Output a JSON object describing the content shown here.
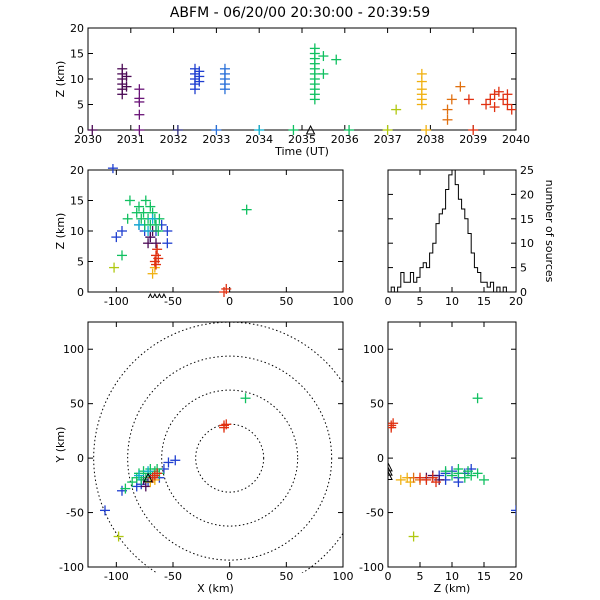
{
  "title": "ABFM - 06/20/00 20:30:00 - 20:39:59",
  "chart_data": [
    {
      "id": "time_height",
      "type": "scatter",
      "xlabel": "Time (UT)",
      "ylabel": "Z (km)",
      "xlim": [
        2030,
        2040
      ],
      "ylim": [
        0,
        20
      ],
      "xticks": [
        "2030",
        "2031",
        "2032",
        "2033",
        "2034",
        "2035",
        "2036",
        "2037",
        "2038",
        "2039",
        "2040"
      ],
      "yticks": [
        "0",
        "5",
        "10",
        "15",
        "20"
      ],
      "series": [
        {
          "color": "#4b0a55",
          "points": [
            [
              2030.1,
              0
            ],
            [
              2030.8,
              7
            ],
            [
              2030.8,
              8
            ],
            [
              2030.8,
              9
            ],
            [
              2030.8,
              10
            ],
            [
              2030.8,
              11
            ],
            [
              2030.8,
              12
            ],
            [
              2030.9,
              8.5
            ],
            [
              2030.9,
              10.5
            ]
          ]
        },
        {
          "color": "#6a1478",
          "points": [
            [
              2031.2,
              0
            ],
            [
              2031.2,
              3
            ],
            [
              2031.2,
              5.5
            ],
            [
              2031.2,
              6.2
            ],
            [
              2031.2,
              8
            ]
          ]
        },
        {
          "color": "#2a2a7a",
          "points": [
            [
              2032.1,
              0
            ]
          ]
        },
        {
          "color": "#1f3fd0",
          "points": [
            [
              2032.5,
              8
            ],
            [
              2032.5,
              9
            ],
            [
              2032.5,
              10
            ],
            [
              2032.5,
              11
            ],
            [
              2032.5,
              12
            ],
            [
              2032.6,
              9.5
            ],
            [
              2032.6,
              10.5
            ],
            [
              2032.6,
              11.5
            ]
          ]
        },
        {
          "color": "#2a70d8",
          "points": [
            [
              2033.0,
              0
            ],
            [
              2033.2,
              8
            ],
            [
              2033.2,
              9
            ],
            [
              2033.2,
              10
            ],
            [
              2033.2,
              11
            ],
            [
              2033.2,
              12
            ]
          ]
        },
        {
          "color": "#10b0d0",
          "points": [
            [
              2034.0,
              0
            ]
          ]
        },
        {
          "color": "#10c060",
          "points": [
            [
              2034.8,
              0
            ],
            [
              2035.3,
              6
            ],
            [
              2035.3,
              7
            ],
            [
              2035.3,
              8
            ],
            [
              2035.3,
              9
            ],
            [
              2035.3,
              10
            ],
            [
              2035.3,
              11
            ],
            [
              2035.3,
              12
            ],
            [
              2035.3,
              13
            ],
            [
              2035.3,
              14
            ],
            [
              2035.3,
              15
            ],
            [
              2035.3,
              16
            ],
            [
              2035.5,
              14.5
            ],
            [
              2035.5,
              11
            ],
            [
              2035.8,
              13.8
            ],
            [
              2036.1,
              0
            ]
          ]
        },
        {
          "color": "#b0c810",
          "points": [
            [
              2037.0,
              0
            ],
            [
              2037.2,
              4
            ]
          ]
        },
        {
          "color": "#f0b010",
          "points": [
            [
              2037.8,
              5
            ],
            [
              2037.8,
              6
            ],
            [
              2037.8,
              7
            ],
            [
              2037.8,
              8
            ],
            [
              2037.8,
              9.5
            ],
            [
              2037.8,
              11
            ],
            [
              2037.9,
              0
            ]
          ]
        },
        {
          "color": "#e07010",
          "points": [
            [
              2038.4,
              2
            ],
            [
              2038.4,
              4
            ],
            [
              2038.5,
              6
            ],
            [
              2038.7,
              8.5
            ]
          ]
        },
        {
          "color": "#e03010",
          "points": [
            [
              2038.9,
              6
            ],
            [
              2039.0,
              0
            ],
            [
              2039.3,
              5
            ],
            [
              2039.4,
              6
            ],
            [
              2039.5,
              7
            ],
            [
              2039.5,
              4.5
            ],
            [
              2039.6,
              7.5
            ],
            [
              2039.7,
              6
            ],
            [
              2039.8,
              5
            ],
            [
              2039.8,
              7
            ],
            [
              2039.9,
              4
            ]
          ]
        }
      ],
      "triangles": [
        [
          2035.2,
          0
        ]
      ]
    },
    {
      "id": "x_z",
      "type": "scatter",
      "ylabel": "Z (km)",
      "xlim": [
        -125,
        100
      ],
      "ylim": [
        0,
        20
      ],
      "xticks": [
        "-100",
        "-50",
        "0",
        "50",
        "100"
      ],
      "yticks": [
        "0",
        "5",
        "10",
        "15",
        "20"
      ],
      "series": [
        {
          "color": "#1f3fd0",
          "points": [
            [
              -103,
              20.3
            ],
            [
              -100,
              9
            ],
            [
              -95,
              10
            ],
            [
              -80,
              11
            ],
            [
              -75,
              10
            ],
            [
              -70,
              9
            ],
            [
              -65,
              10
            ],
            [
              -60,
              11
            ],
            [
              -55,
              10
            ],
            [
              -55,
              8
            ]
          ]
        },
        {
          "color": "#4b0a55",
          "points": [
            [
              -72,
              8
            ],
            [
              -70,
              9
            ],
            [
              -68,
              10
            ],
            [
              -65,
              8
            ]
          ]
        },
        {
          "color": "#10c060",
          "points": [
            [
              -90,
              12
            ],
            [
              -88,
              15
            ],
            [
              -82,
              13
            ],
            [
              -80,
              14
            ],
            [
              -78,
              12
            ],
            [
              -76,
              13
            ],
            [
              -75,
              11
            ],
            [
              -74,
              15
            ],
            [
              -72,
              12
            ],
            [
              -70,
              11
            ],
            [
              -70,
              14
            ],
            [
              -68,
              13
            ],
            [
              -66,
              12
            ],
            [
              -65,
              11
            ],
            [
              -63,
              10
            ],
            [
              -62,
              12
            ],
            [
              -95,
              6
            ],
            [
              15,
              13.5
            ]
          ]
        },
        {
          "color": "#10b0d0",
          "points": [
            [
              -80,
              11
            ],
            [
              -72,
              10
            ],
            [
              -68,
              12
            ]
          ]
        },
        {
          "color": "#b0c810",
          "points": [
            [
              -102,
              4
            ]
          ]
        },
        {
          "color": "#f0b010",
          "points": [
            [
              -68,
              3
            ],
            [
              -66,
              4
            ]
          ]
        },
        {
          "color": "#e03010",
          "points": [
            [
              -66,
              5
            ],
            [
              -65,
              6
            ],
            [
              -64,
              7
            ],
            [
              -63,
              5.5
            ],
            [
              -65,
              4.5
            ],
            [
              -5,
              0
            ],
            [
              -3,
              0.5
            ]
          ]
        }
      ],
      "triangles": [
        [
          -70,
          -1
        ],
        [
          -66,
          -1
        ],
        [
          -62,
          -1
        ],
        [
          -58,
          -1
        ]
      ]
    },
    {
      "id": "z_hist",
      "type": "line",
      "xlabel": "",
      "ylabel": "number of sources",
      "xlim": [
        0,
        20
      ],
      "ylim": [
        0,
        25
      ],
      "xticks": [
        "0",
        "5",
        "10",
        "15",
        "20"
      ],
      "yticks": [
        "0",
        "5",
        "10",
        "15",
        "20",
        "25"
      ],
      "x": [
        0,
        0.5,
        1,
        1.5,
        2,
        2.5,
        3,
        3.5,
        4,
        4.5,
        5,
        5.5,
        6,
        6.5,
        7,
        7.5,
        8,
        8.5,
        9,
        9.5,
        10,
        10.5,
        11,
        11.5,
        12,
        12.5,
        13,
        13.5,
        14,
        14.5,
        15,
        15.5,
        16,
        16.5,
        17,
        17.5,
        18,
        18.5,
        19,
        19.5
      ],
      "values": [
        0,
        1,
        0,
        1,
        4,
        2,
        2,
        4,
        2,
        3,
        5,
        6,
        5,
        8,
        10,
        14,
        16,
        17,
        21,
        24,
        25,
        22,
        19,
        17,
        15,
        12,
        8,
        5,
        4,
        2,
        2,
        1,
        2,
        0,
        1,
        0,
        1,
        0,
        0,
        0
      ]
    },
    {
      "id": "x_y",
      "type": "scatter",
      "xlabel": "X (km)",
      "ylabel": "Y (km)",
      "xlim": [
        -125,
        100
      ],
      "ylim": [
        -100,
        125
      ],
      "xticks": [
        "-100",
        "-50",
        "0",
        "50",
        "100"
      ],
      "yticks": [
        "-100",
        "-50",
        "0",
        "50",
        "100"
      ],
      "range_rings_km": [
        30,
        60,
        90,
        120
      ],
      "series": [
        {
          "color": "#1f3fd0",
          "points": [
            [
              -110,
              -48
            ],
            [
              -95,
              -30
            ],
            [
              -82,
              -26
            ],
            [
              -78,
              -24
            ],
            [
              -72,
              -22
            ],
            [
              -62,
              -18
            ],
            [
              -58,
              -10
            ],
            [
              -54,
              -4
            ],
            [
              -48,
              -2
            ]
          ]
        },
        {
          "color": "#4b0a55",
          "points": [
            [
              -76,
              -20
            ],
            [
              -70,
              -18
            ],
            [
              -66,
              -16
            ],
            [
              -74,
              -26
            ]
          ]
        },
        {
          "color": "#10c060",
          "points": [
            [
              -92,
              -28
            ],
            [
              -86,
              -22
            ],
            [
              -82,
              -18
            ],
            [
              -80,
              -14
            ],
            [
              -78,
              -20
            ],
            [
              -76,
              -12
            ],
            [
              -74,
              -18
            ],
            [
              -72,
              -14
            ],
            [
              -70,
              -10
            ],
            [
              -68,
              -16
            ],
            [
              -66,
              -12
            ],
            [
              -64,
              -10
            ],
            [
              -62,
              -14
            ],
            [
              14,
              55
            ]
          ]
        },
        {
          "color": "#10b0d0",
          "points": [
            [
              -80,
              -16
            ],
            [
              -72,
              -12
            ],
            [
              -68,
              -18
            ]
          ]
        },
        {
          "color": "#b0c810",
          "points": [
            [
              -98,
              -72
            ]
          ]
        },
        {
          "color": "#f0b010",
          "points": [
            [
              -70,
              -22
            ],
            [
              -66,
              -20
            ]
          ]
        },
        {
          "color": "#e03010",
          "points": [
            [
              -68,
              -18
            ],
            [
              -66,
              -16
            ],
            [
              -64,
              -14
            ],
            [
              -5,
              30
            ],
            [
              -3,
              31
            ],
            [
              -5,
              28
            ]
          ]
        }
      ],
      "triangles": [
        [
          -72,
          -18
        ]
      ]
    },
    {
      "id": "z_y",
      "type": "scatter",
      "xlabel": "Z (km)",
      "xlim": [
        0,
        20
      ],
      "ylim": [
        -100,
        125
      ],
      "xticks": [
        "0",
        "5",
        "10",
        "15",
        "20"
      ],
      "yticks": [
        "-100",
        "-50",
        "0",
        "50",
        "100"
      ],
      "series": [
        {
          "color": "#1f3fd0",
          "points": [
            [
              20,
              -48
            ],
            [
              8,
              -16
            ],
            [
              9,
              -14
            ],
            [
              10,
              -12
            ],
            [
              11,
              -18
            ],
            [
              12,
              -14
            ],
            [
              13,
              -10
            ],
            [
              9,
              -20
            ],
            [
              11,
              -22
            ]
          ]
        },
        {
          "color": "#4b0a55",
          "points": [
            [
              6,
              -18
            ],
            [
              7,
              -16
            ],
            [
              8,
              -20
            ]
          ]
        },
        {
          "color": "#10c060",
          "points": [
            [
              9,
              -12
            ],
            [
              10,
              -16
            ],
            [
              11,
              -14
            ],
            [
              12,
              -18
            ],
            [
              12.5,
              -12
            ],
            [
              13,
              -16
            ],
            [
              14,
              -14
            ],
            [
              15,
              -20
            ],
            [
              14,
              55
            ],
            [
              11,
              -10
            ]
          ]
        },
        {
          "color": "#b0c810",
          "points": [
            [
              4,
              -72
            ]
          ]
        },
        {
          "color": "#f0b010",
          "points": [
            [
              2,
              -20
            ],
            [
              3,
              -18
            ],
            [
              3.5,
              -22
            ]
          ]
        },
        {
          "color": "#e07010",
          "points": [
            [
              4,
              -18
            ],
            [
              5,
              -20
            ]
          ]
        },
        {
          "color": "#e03010",
          "points": [
            [
              5,
              -18
            ],
            [
              6,
              -20
            ],
            [
              7,
              -18
            ],
            [
              7.5,
              -22
            ],
            [
              0.5,
              30
            ],
            [
              0.8,
              32
            ],
            [
              0.5,
              28
            ]
          ]
        }
      ],
      "triangles": [
        [
          0,
          -8
        ],
        [
          0,
          -12
        ],
        [
          0,
          -16
        ]
      ]
    }
  ]
}
